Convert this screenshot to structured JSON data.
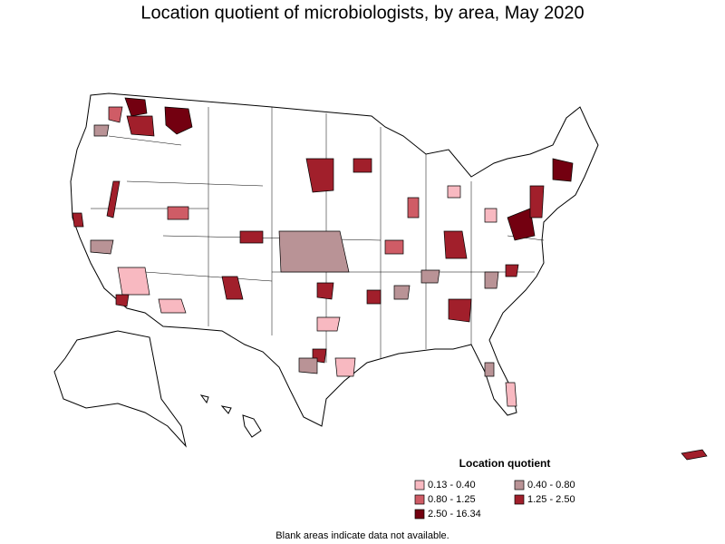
{
  "title": "Location quotient of microbiologists, by area, May 2020",
  "legend": {
    "title": "Location quotient",
    "items": [
      {
        "label": "0.13 - 0.40",
        "color": "#f8b9c1"
      },
      {
        "label": "0.40 - 0.80",
        "color": "#b99396"
      },
      {
        "label": "0.80 - 1.25",
        "color": "#cf5c66"
      },
      {
        "label": "1.25 - 2.50",
        "color": "#a11f2b"
      },
      {
        "label": "2.50 - 16.34",
        "color": "#730010"
      }
    ]
  },
  "footnote": "Blank areas indicate data not available."
}
